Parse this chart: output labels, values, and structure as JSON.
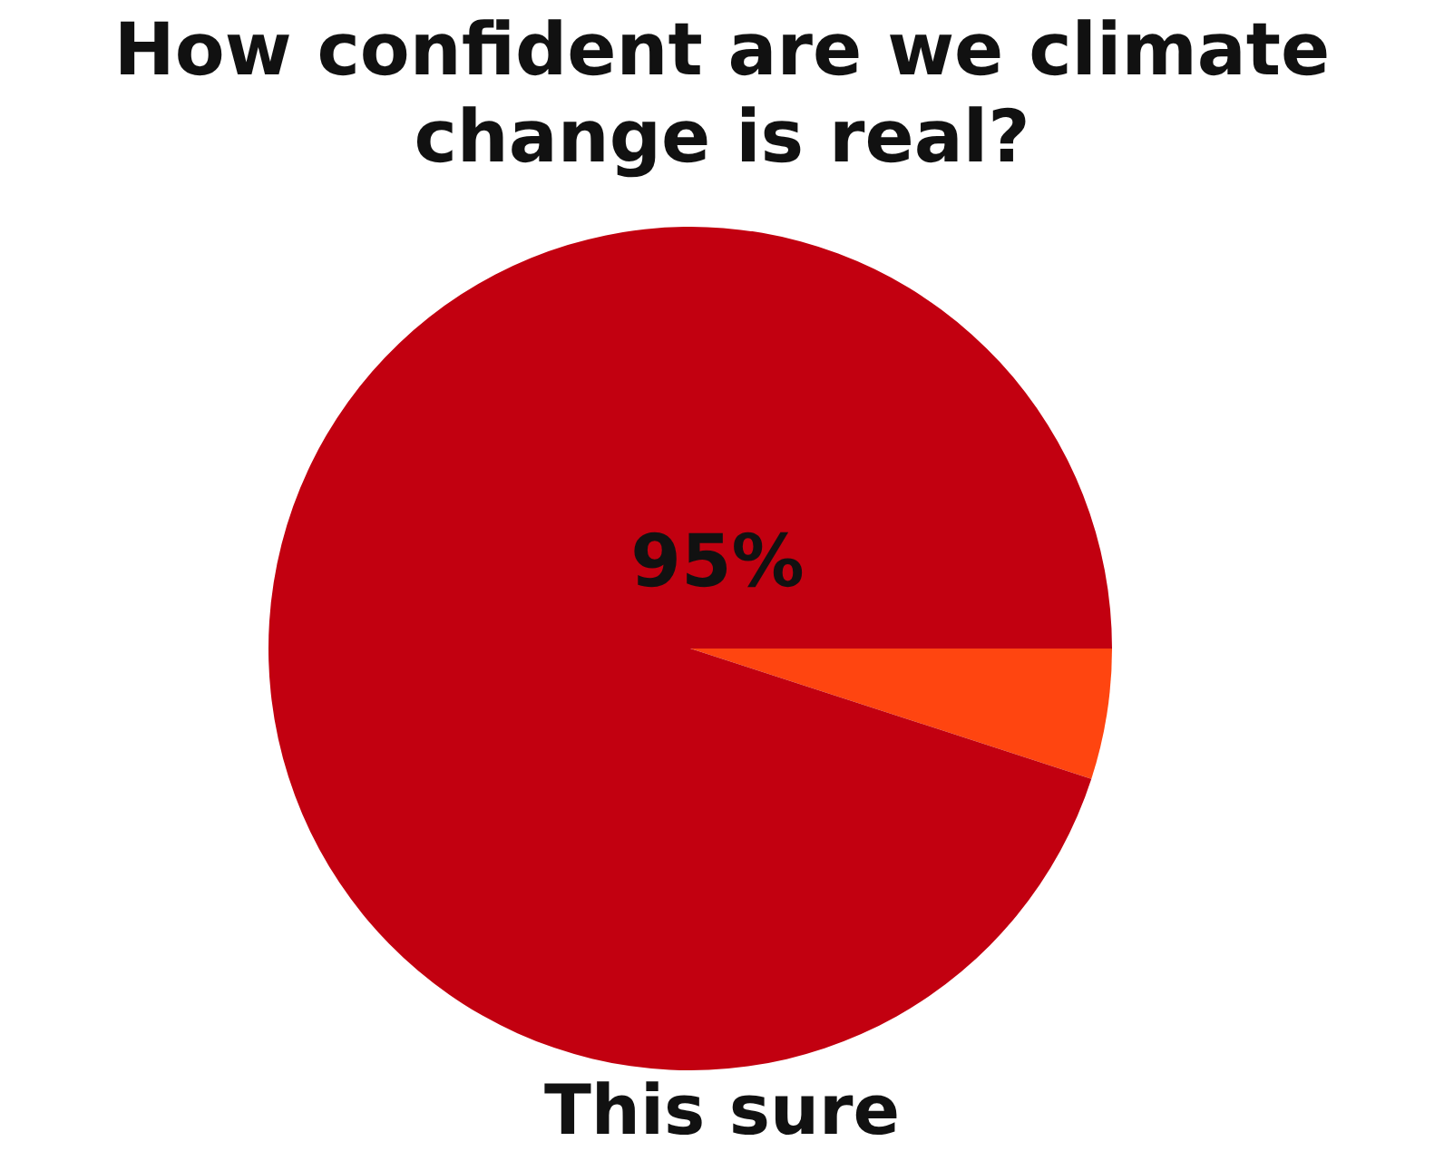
{
  "chart_data": {
    "type": "pie",
    "title": "How confident are we climate change is real?",
    "categories": [
      null,
      null
    ],
    "values": [
      5,
      95
    ],
    "colors": [
      "#ff4510",
      "#c20010"
    ],
    "value_labels": [
      null,
      "95%"
    ],
    "annotations": [
      "This sure"
    ],
    "legend": false
  }
}
